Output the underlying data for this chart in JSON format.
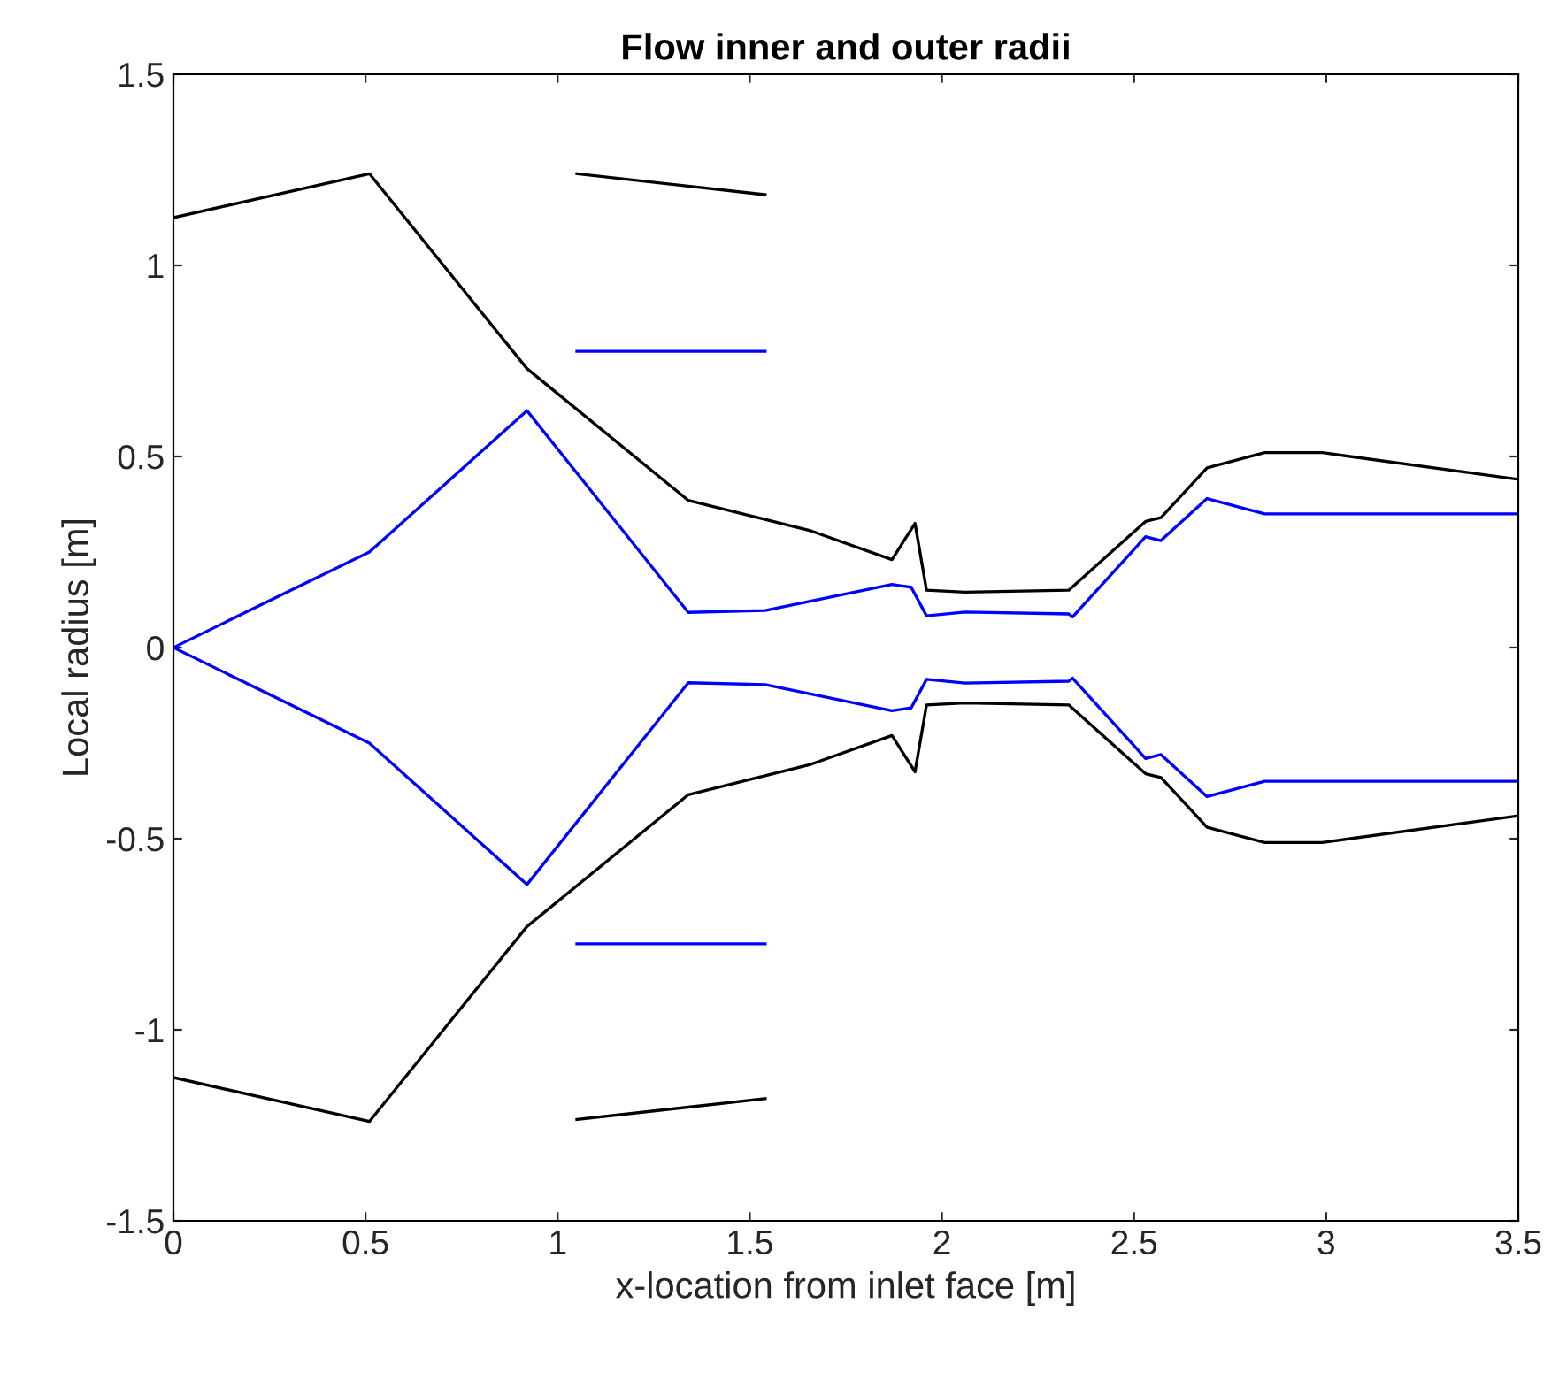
{
  "chart_data": {
    "type": "line",
    "title": "Flow inner and outer radii",
    "xlabel": "x-location from inlet face [m]",
    "ylabel": "Local radius [m]",
    "xlim": [
      0,
      3.5
    ],
    "ylim": [
      -1.5,
      1.5
    ],
    "xticks": [
      0,
      0.5,
      1,
      1.5,
      2,
      2.5,
      3,
      3.5
    ],
    "yticks": [
      -1.5,
      -1,
      -0.5,
      0,
      0.5,
      1,
      1.5
    ],
    "grid": false,
    "legend": false,
    "marker": "none",
    "line_style": "solid",
    "series": [
      {
        "color": "#000000",
        "x": [
          0,
          0.51,
          0.92,
          1.34,
          1.66,
          1.87,
          1.93,
          1.96,
          2.06,
          2.33,
          2.53,
          2.57,
          2.69,
          2.84,
          2.99,
          3.5
        ],
        "values": [
          1.125,
          1.24,
          0.73,
          0.385,
          0.305,
          0.23,
          0.325,
          0.15,
          0.145,
          0.15,
          0.33,
          0.34,
          0.47,
          0.51,
          0.51,
          0.44
        ]
      },
      {
        "color": "#000000",
        "x": [
          0,
          0.51,
          0.92,
          1.34,
          1.66,
          1.87,
          1.93,
          1.96,
          2.06,
          2.33,
          2.53,
          2.57,
          2.69,
          2.84,
          2.99,
          3.5
        ],
        "values": [
          -1.125,
          -1.24,
          -0.73,
          -0.385,
          -0.305,
          -0.23,
          -0.325,
          -0.15,
          -0.145,
          -0.15,
          -0.33,
          -0.34,
          -0.47,
          -0.51,
          -0.51,
          -0.44
        ]
      },
      {
        "color": "#0000ff",
        "x": [
          0,
          0.51,
          0.92,
          1.34,
          1.54,
          1.87,
          1.92,
          1.96,
          2.06,
          2.33,
          2.34,
          2.53,
          2.57,
          2.69,
          2.84,
          3.5
        ],
        "values": [
          0,
          0.25,
          0.62,
          0.092,
          0.097,
          0.165,
          0.158,
          0.083,
          0.093,
          0.088,
          0.08,
          0.29,
          0.28,
          0.39,
          0.35,
          0.35
        ]
      },
      {
        "color": "#0000ff",
        "x": [
          0,
          0.51,
          0.92,
          1.34,
          1.54,
          1.87,
          1.92,
          1.96,
          2.06,
          2.33,
          2.34,
          2.53,
          2.57,
          2.69,
          2.84,
          3.5
        ],
        "values": [
          0,
          -0.25,
          -0.62,
          -0.092,
          -0.097,
          -0.165,
          -0.158,
          -0.083,
          -0.093,
          -0.088,
          -0.08,
          -0.29,
          -0.28,
          -0.39,
          -0.35,
          -0.35
        ]
      },
      {
        "color": "#000000",
        "x": [
          1.05,
          1.54
        ],
        "values": [
          1.24,
          1.185
        ]
      },
      {
        "color": "#0000ff",
        "x": [
          1.05,
          1.54
        ],
        "values": [
          0.775,
          0.775
        ]
      },
      {
        "color": "#0000ff",
        "x": [
          1.05,
          1.54
        ],
        "values": [
          -0.775,
          -0.775
        ]
      },
      {
        "color": "#000000",
        "x": [
          1.05,
          1.54
        ],
        "values": [
          -1.235,
          -1.18
        ]
      }
    ]
  }
}
